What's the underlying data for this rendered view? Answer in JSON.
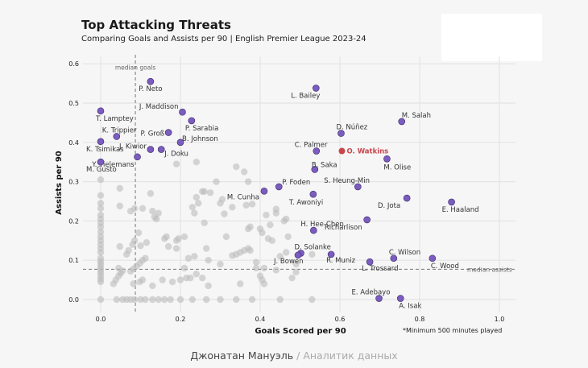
{
  "chart_data": {
    "type": "scatter",
    "title": "Top Attacking Threats",
    "subtitle": "Comparing Goals and Assists per 90 | English Premier League 2023-24",
    "xlabel": "Goals Scored per 90",
    "ylabel": "Assists per 90",
    "xlim": [
      -0.04,
      1.03
    ],
    "ylim": [
      -0.02,
      0.62
    ],
    "xticks": [
      "0.0",
      "0.2",
      "0.4",
      "0.6",
      "0.8",
      "1.0"
    ],
    "xtick_values": [
      0.0,
      0.2,
      0.4,
      0.6,
      0.8,
      1.0
    ],
    "yticks": [
      "0.0",
      "0.1",
      "0.2",
      "0.3",
      "0.4",
      "0.5",
      "0.6"
    ],
    "ytick_values": [
      0.0,
      0.1,
      0.2,
      0.3,
      0.4,
      0.5,
      0.6
    ],
    "grid": true,
    "median_goals": 0.087,
    "median_assists": 0.077,
    "median_goals_label": "median goals",
    "median_assists_label": "median assists",
    "note": "*Minimum 500 minutes played",
    "colors": {
      "highlight": "#c8454b",
      "top": "#7b5cbf",
      "other": "#bdbdbd"
    },
    "highlight": {
      "name": "O. Watkins",
      "x": 0.605,
      "y": 0.378
    },
    "labeled_players": [
      {
        "name": "P. Neto",
        "x": 0.125,
        "y": 0.555
      },
      {
        "name": "L. Bailey",
        "x": 0.54,
        "y": 0.538
      },
      {
        "name": "T. Lamptey",
        "x": 0.0,
        "y": 0.48
      },
      {
        "name": "J. Maddison",
        "x": 0.205,
        "y": 0.477
      },
      {
        "name": "P. Sarabia",
        "x": 0.228,
        "y": 0.455
      },
      {
        "name": "M. Salah",
        "x": 0.755,
        "y": 0.453
      },
      {
        "name": "P. Groß",
        "x": 0.17,
        "y": 0.425
      },
      {
        "name": "D. Núñez",
        "x": 0.603,
        "y": 0.423
      },
      {
        "name": "K. Trippier",
        "x": 0.04,
        "y": 0.415
      },
      {
        "name": "K. Tsimikas",
        "x": 0.0,
        "y": 0.402
      },
      {
        "name": "B. Johnson",
        "x": 0.2,
        "y": 0.4
      },
      {
        "name": "J. Kiwior",
        "x": 0.125,
        "y": 0.382
      },
      {
        "name": "J. Doku",
        "x": 0.152,
        "y": 0.382
      },
      {
        "name": "C. Palmer",
        "x": 0.541,
        "y": 0.378
      },
      {
        "name": "Y. Tielemans",
        "x": 0.092,
        "y": 0.363
      },
      {
        "name": "M. Olise",
        "x": 0.718,
        "y": 0.358
      },
      {
        "name": "M. Gusto",
        "x": 0.0,
        "y": 0.35
      },
      {
        "name": "B. Saka",
        "x": 0.537,
        "y": 0.331
      },
      {
        "name": "P. Foden",
        "x": 0.447,
        "y": 0.287
      },
      {
        "name": "S. Heung-Min",
        "x": 0.645,
        "y": 0.287
      },
      {
        "name": "M. Cunha",
        "x": 0.41,
        "y": 0.276
      },
      {
        "name": "T. Awoniyi",
        "x": 0.533,
        "y": 0.268
      },
      {
        "name": "D. Jota",
        "x": 0.768,
        "y": 0.258
      },
      {
        "name": "E. Haaland",
        "x": 0.88,
        "y": 0.248
      },
      {
        "name": "Richarlison",
        "x": 0.668,
        "y": 0.203
      },
      {
        "name": "H. Hee-Chen",
        "x": 0.534,
        "y": 0.176
      },
      {
        "name": "D. Solanke",
        "x": 0.502,
        "y": 0.118
      },
      {
        "name": "J. Bowen",
        "x": 0.495,
        "y": 0.113
      },
      {
        "name": "R. Muniz",
        "x": 0.578,
        "y": 0.115
      },
      {
        "name": "C. Wilson",
        "x": 0.735,
        "y": 0.105
      },
      {
        "name": "C. Wood",
        "x": 0.832,
        "y": 0.105
      },
      {
        "name": "L. Trossard",
        "x": 0.675,
        "y": 0.096
      },
      {
        "name": "E. Adebayo",
        "x": 0.698,
        "y": 0.003
      },
      {
        "name": "A. Isak",
        "x": 0.752,
        "y": 0.003
      }
    ],
    "other_players": [
      [
        0.0,
        0.305
      ],
      [
        0.0,
        0.265
      ],
      [
        0.0,
        0.245
      ],
      [
        0.0,
        0.232
      ],
      [
        0.0,
        0.215
      ],
      [
        0.0,
        0.205
      ],
      [
        0.0,
        0.195
      ],
      [
        0.0,
        0.185
      ],
      [
        0.0,
        0.172
      ],
      [
        0.0,
        0.16
      ],
      [
        0.0,
        0.15
      ],
      [
        0.0,
        0.14
      ],
      [
        0.0,
        0.13
      ],
      [
        0.0,
        0.12
      ],
      [
        0.0,
        0.105
      ],
      [
        0.0,
        0.097
      ],
      [
        0.0,
        0.09
      ],
      [
        0.0,
        0.082
      ],
      [
        0.0,
        0.075
      ],
      [
        0.0,
        0.068
      ],
      [
        0.0,
        0.06
      ],
      [
        0.0,
        0.052
      ],
      [
        0.0,
        0.045
      ],
      [
        0.0,
        0.0
      ],
      [
        0.048,
        0.283
      ],
      [
        0.048,
        0.238
      ],
      [
        0.048,
        0.135
      ],
      [
        0.045,
        0.08
      ],
      [
        0.04,
        0.0
      ],
      [
        0.055,
        0.0
      ],
      [
        0.065,
        0.0
      ],
      [
        0.075,
        0.0
      ],
      [
        0.085,
        0.0
      ],
      [
        0.1,
        0.0
      ],
      [
        0.112,
        0.0
      ],
      [
        0.13,
        0.0
      ],
      [
        0.145,
        0.0
      ],
      [
        0.16,
        0.0
      ],
      [
        0.175,
        0.0
      ],
      [
        0.2,
        0.0
      ],
      [
        0.23,
        0.0
      ],
      [
        0.265,
        0.0
      ],
      [
        0.3,
        0.0
      ],
      [
        0.34,
        0.0
      ],
      [
        0.38,
        0.0
      ],
      [
        0.45,
        0.0
      ],
      [
        0.53,
        0.0
      ],
      [
        0.032,
        0.04
      ],
      [
        0.038,
        0.05
      ],
      [
        0.045,
        0.06
      ],
      [
        0.05,
        0.067
      ],
      [
        0.055,
        0.073
      ],
      [
        0.075,
        0.072
      ],
      [
        0.082,
        0.078
      ],
      [
        0.09,
        0.085
      ],
      [
        0.098,
        0.092
      ],
      [
        0.105,
        0.1
      ],
      [
        0.112,
        0.105
      ],
      [
        0.082,
        0.04
      ],
      [
        0.098,
        0.045
      ],
      [
        0.105,
        0.05
      ],
      [
        0.065,
        0.115
      ],
      [
        0.07,
        0.125
      ],
      [
        0.08,
        0.14
      ],
      [
        0.085,
        0.15
      ],
      [
        0.095,
        0.17
      ],
      [
        0.075,
        0.225
      ],
      [
        0.085,
        0.232
      ],
      [
        0.105,
        0.232
      ],
      [
        0.1,
        0.137
      ],
      [
        0.115,
        0.145
      ],
      [
        0.125,
        0.27
      ],
      [
        0.13,
        0.225
      ],
      [
        0.145,
        0.22
      ],
      [
        0.14,
        0.205
      ],
      [
        0.135,
        0.21
      ],
      [
        0.16,
        0.155
      ],
      [
        0.165,
        0.16
      ],
      [
        0.19,
        0.15
      ],
      [
        0.195,
        0.155
      ],
      [
        0.17,
        0.135
      ],
      [
        0.19,
        0.13
      ],
      [
        0.21,
        0.16
      ],
      [
        0.22,
        0.105
      ],
      [
        0.235,
        0.11
      ],
      [
        0.13,
        0.035
      ],
      [
        0.155,
        0.05
      ],
      [
        0.18,
        0.045
      ],
      [
        0.2,
        0.05
      ],
      [
        0.215,
        0.055
      ],
      [
        0.225,
        0.055
      ],
      [
        0.21,
        0.08
      ],
      [
        0.24,
        0.065
      ],
      [
        0.23,
        0.235
      ],
      [
        0.235,
        0.22
      ],
      [
        0.24,
        0.26
      ],
      [
        0.245,
        0.245
      ],
      [
        0.255,
        0.275
      ],
      [
        0.26,
        0.275
      ],
      [
        0.275,
        0.272
      ],
      [
        0.26,
        0.195
      ],
      [
        0.265,
        0.13
      ],
      [
        0.27,
        0.1
      ],
      [
        0.255,
        0.055
      ],
      [
        0.19,
        0.345
      ],
      [
        0.24,
        0.35
      ],
      [
        0.29,
        0.3
      ],
      [
        0.3,
        0.245
      ],
      [
        0.305,
        0.255
      ],
      [
        0.31,
        0.218
      ],
      [
        0.315,
        0.16
      ],
      [
        0.33,
        0.235
      ],
      [
        0.33,
        0.112
      ],
      [
        0.34,
        0.115
      ],
      [
        0.35,
        0.12
      ],
      [
        0.36,
        0.125
      ],
      [
        0.37,
        0.3
      ],
      [
        0.38,
        0.243
      ],
      [
        0.39,
        0.08
      ],
      [
        0.39,
        0.095
      ],
      [
        0.4,
        0.06
      ],
      [
        0.405,
        0.05
      ],
      [
        0.42,
        0.155
      ],
      [
        0.43,
        0.15
      ],
      [
        0.46,
        0.2
      ],
      [
        0.465,
        0.205
      ],
      [
        0.47,
        0.16
      ],
      [
        0.48,
        0.055
      ],
      [
        0.49,
        0.07
      ],
      [
        0.49,
        0.09
      ],
      [
        0.34,
        0.338
      ],
      [
        0.36,
        0.325
      ],
      [
        0.365,
        0.24
      ],
      [
        0.37,
        0.13
      ],
      [
        0.375,
        0.125
      ],
      [
        0.415,
        0.215
      ],
      [
        0.425,
        0.19
      ],
      [
        0.44,
        0.22
      ],
      [
        0.41,
        0.04
      ],
      [
        0.35,
        0.04
      ],
      [
        0.3,
        0.09
      ],
      [
        0.27,
        0.035
      ],
      [
        0.37,
        0.18
      ],
      [
        0.375,
        0.185
      ],
      [
        0.4,
        0.18
      ],
      [
        0.405,
        0.17
      ],
      [
        0.44,
        0.23
      ],
      [
        0.45,
        0.11
      ],
      [
        0.465,
        0.12
      ],
      [
        0.53,
        0.115
      ],
      [
        0.44,
        0.075
      ],
      [
        0.41,
        0.08
      ]
    ]
  },
  "footer": {
    "author": "Джонатан Мануэль",
    "separator": " / ",
    "role": "Аналитик данных"
  }
}
